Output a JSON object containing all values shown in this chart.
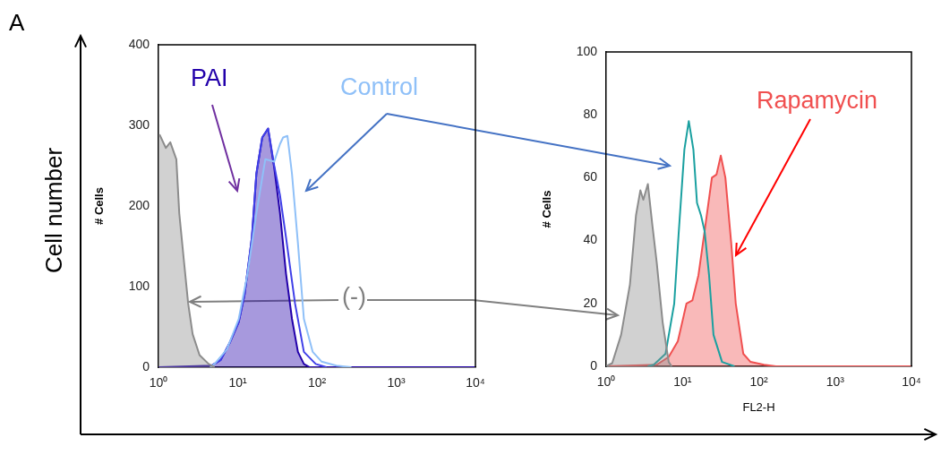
{
  "chart_data": [
    {
      "type": "area",
      "ylabel": "# Cells",
      "log": "x",
      "xlim": [
        1,
        10000
      ],
      "xticks": [
        {
          "value": 1,
          "label": "10⁰"
        },
        {
          "value": 10,
          "label": "10¹"
        },
        {
          "value": 100,
          "label": "10²"
        },
        {
          "value": 1000,
          "label": "10³"
        },
        {
          "value": 10000,
          "label": "10⁴"
        }
      ],
      "ylim": [
        0,
        400
      ],
      "yticks": [
        0,
        100,
        200,
        300,
        400
      ],
      "annotations": [
        "A",
        "Cell number",
        "(-)"
      ],
      "series": [
        {
          "type": "area",
          "color": "#8c8c8c",
          "x": [
            1,
            1.04,
            1.24,
            1.41,
            1.68,
            1.83,
            2.08,
            2.37,
            2.7,
            3.3,
            4.3,
            5.1
          ],
          "values": [
            288,
            288,
            272,
            279,
            258,
            191,
            135,
            79,
            41,
            15,
            4,
            0
          ]
        },
        {
          "type": "line",
          "name": "Control",
          "color": "#8fc0f8",
          "x": [
            4.5,
            5.1,
            7.3,
            10.3,
            13.3,
            17.2,
            22.3,
            28.9,
            34.2,
            37.4,
            42.4,
            48.4,
            57.5,
            68.4,
            88.5,
            114,
            176,
            272
          ],
          "values": [
            0,
            4,
            22,
            60,
            116,
            191,
            258,
            255,
            277,
            285,
            287,
            240,
            154,
            60,
            19,
            7,
            2,
            0
          ]
        },
        {
          "type": "line",
          "color": "#4040e8",
          "x": [
            4.5,
            4.7,
            6.1,
            7.9,
            10.3,
            12.2,
            15.1,
            17.2,
            20.4,
            24.2,
            28.9,
            34.2,
            40.7,
            52.9,
            68.4,
            96.5,
            132
          ],
          "values": [
            0,
            2,
            9,
            30,
            56,
            90,
            161,
            240,
            285,
            296,
            250,
            213,
            161,
            79,
            19,
            4,
            0
          ]
        },
        {
          "type": "area",
          "name": "PAI",
          "color": "#2200aa",
          "x": [
            1,
            4.7,
            6.1,
            7.9,
            10.3,
            12.2,
            15.1,
            17.2,
            20.4,
            24.2,
            28.9,
            34.2,
            40.7,
            48.4,
            57.5,
            68.4,
            81,
            10000
          ],
          "values": [
            0,
            2,
            9,
            30,
            56,
            90,
            161,
            240,
            285,
            296,
            247,
            191,
            116,
            60,
            19,
            4,
            0,
            0
          ]
        }
      ]
    },
    {
      "type": "area",
      "ylabel": "# Cells",
      "xlabel": "FL2-H",
      "log": "x",
      "xlim": [
        1,
        10000
      ],
      "xticks": [
        {
          "value": 1,
          "label": "10⁰"
        },
        {
          "value": 10,
          "label": "10¹"
        },
        {
          "value": 100,
          "label": "10²"
        },
        {
          "value": 1000,
          "label": "10³"
        },
        {
          "value": 10000,
          "label": "10⁴"
        }
      ],
      "ylim": [
        0,
        100
      ],
      "yticks": [
        0,
        20,
        40,
        60,
        80,
        100
      ],
      "series": [
        {
          "type": "area",
          "color": "#8c8c8c",
          "x": [
            1,
            1.2,
            1.57,
            2.05,
            2.46,
            2.81,
            3.07,
            3.52,
            4.03,
            4.6,
            5.5,
            6.6,
            7.2
          ],
          "values": [
            0,
            1,
            10,
            26,
            48,
            56,
            53,
            58,
            45,
            33,
            14,
            1.4,
            0
          ]
        },
        {
          "type": "line",
          "color": "#1aa0a0",
          "x": [
            3.5,
            4.2,
            6,
            7.8,
            8.9,
            10.6,
            12.1,
            13.9,
            15.5,
            17.5,
            19.5,
            22.3,
            25.5,
            33,
            48
          ],
          "values": [
            0,
            0.5,
            4,
            20,
            42,
            69,
            78,
            69,
            52,
            48,
            43,
            29,
            10,
            1.4,
            0
          ]
        },
        {
          "type": "area",
          "name": "Rapamycin",
          "color": "#f05050",
          "x": [
            1,
            4.6,
            6.6,
            8.7,
            11.3,
            13.5,
            16.2,
            19.5,
            24.3,
            27.9,
            31.8,
            36.5,
            43.6,
            49.9,
            62.6,
            78,
            117,
            168,
            10000
          ],
          "values": [
            0,
            0.5,
            3,
            8,
            20,
            21,
            29,
            43,
            60,
            61,
            67,
            60,
            39,
            20,
            4,
            1.4,
            0.5,
            0,
            0
          ]
        }
      ]
    }
  ]
}
